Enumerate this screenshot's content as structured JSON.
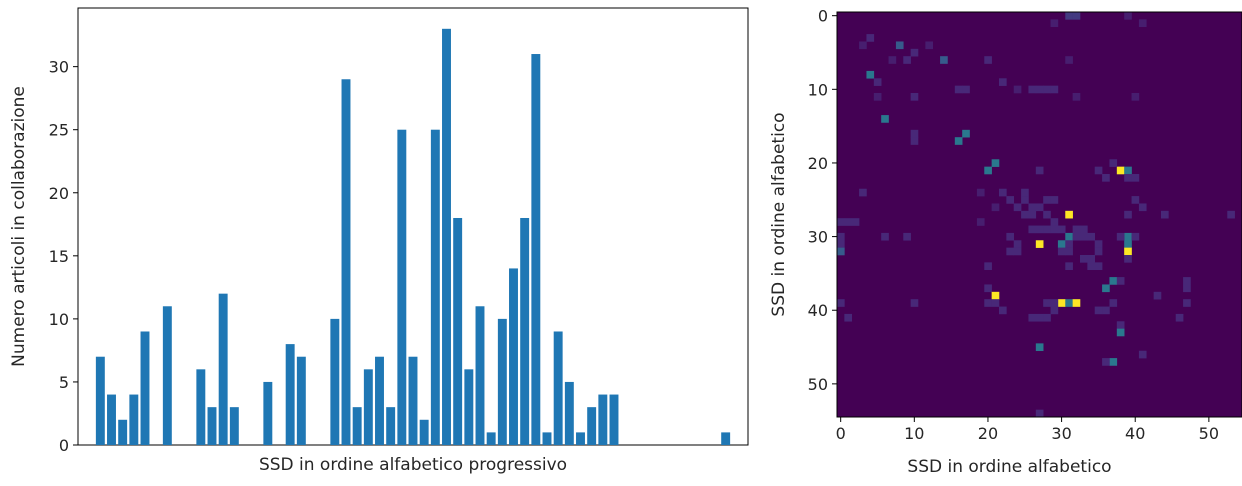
{
  "chart_data": [
    {
      "type": "bar",
      "title": "",
      "xlabel": "SSD in ordine alfabetico progressivo",
      "ylabel": "Numero articoli in collaborazione",
      "ylim": [
        0,
        34.65
      ],
      "yticks": [
        0,
        5,
        10,
        15,
        20,
        25,
        30
      ],
      "x": [
        0,
        1,
        2,
        3,
        4,
        6,
        9,
        10,
        11,
        12,
        15,
        17,
        18,
        21,
        22,
        23,
        24,
        25,
        26,
        27,
        28,
        29,
        30,
        31,
        32,
        33,
        34,
        35,
        36,
        37,
        38,
        39,
        40,
        41,
        42,
        43,
        44,
        45,
        46,
        56
      ],
      "values": [
        7,
        4,
        2,
        4,
        9,
        11,
        6,
        3,
        12,
        3,
        5,
        8,
        7,
        10,
        29,
        3,
        6,
        7,
        3,
        25,
        7,
        2,
        25,
        33,
        18,
        6,
        11,
        1,
        10,
        14,
        18,
        31,
        1,
        9,
        5,
        1,
        3,
        4,
        4,
        1
      ],
      "xlim": [
        -2.0,
        58.0
      ],
      "xticks_shown": false,
      "color": "#1f77b4"
    },
    {
      "type": "heatmap",
      "xlabel": "SSD in ordine alfabetico",
      "ylabel": "SSD in ordine alfabetico",
      "size": 55,
      "xticks": [
        0,
        10,
        20,
        30,
        40,
        50
      ],
      "yticks": [
        0,
        10,
        20,
        30,
        40,
        50
      ],
      "colormap": "viridis",
      "vmax": 31,
      "cells": [
        [
          31,
          0,
          6
        ],
        [
          32,
          0,
          6
        ],
        [
          29,
          1,
          3
        ],
        [
          39,
          0,
          3
        ],
        [
          41,
          1,
          3
        ],
        [
          4,
          3,
          4
        ],
        [
          3,
          4,
          3
        ],
        [
          8,
          4,
          10
        ],
        [
          10,
          5,
          4
        ],
        [
          12,
          4,
          3
        ],
        [
          9,
          6,
          4
        ],
        [
          14,
          6,
          10
        ],
        [
          20,
          6,
          4
        ],
        [
          31,
          6,
          3
        ],
        [
          7,
          6,
          3
        ],
        [
          4,
          8,
          14
        ],
        [
          5,
          9,
          4
        ],
        [
          22,
          9,
          4
        ],
        [
          24,
          10,
          3
        ],
        [
          16,
          10,
          4
        ],
        [
          17,
          10,
          4
        ],
        [
          26,
          10,
          4
        ],
        [
          27,
          10,
          4
        ],
        [
          28,
          10,
          4
        ],
        [
          29,
          10,
          4
        ],
        [
          5,
          11,
          3
        ],
        [
          10,
          11,
          4
        ],
        [
          32,
          11,
          3
        ],
        [
          40,
          11,
          3
        ],
        [
          6,
          14,
          14
        ],
        [
          10,
          16,
          4
        ],
        [
          17,
          16,
          14
        ],
        [
          16,
          17,
          14
        ],
        [
          10,
          17,
          4
        ],
        [
          21,
          20,
          14
        ],
        [
          20,
          21,
          14
        ],
        [
          38,
          21,
          31
        ],
        [
          39,
          21,
          14
        ],
        [
          37,
          20,
          4
        ],
        [
          39,
          22,
          4
        ],
        [
          40,
          22,
          4
        ],
        [
          36,
          22,
          4
        ],
        [
          35,
          21,
          4
        ],
        [
          27,
          21,
          4
        ],
        [
          3,
          24,
          4
        ],
        [
          19,
          24,
          3
        ],
        [
          25,
          24,
          4
        ],
        [
          21,
          26,
          3
        ],
        [
          23,
          25,
          4
        ],
        [
          25,
          25,
          4
        ],
        [
          24,
          26,
          4
        ],
        [
          26,
          26,
          4
        ],
        [
          27,
          26,
          4
        ],
        [
          22,
          24,
          4
        ],
        [
          28,
          25,
          4
        ],
        [
          29,
          25,
          4
        ],
        [
          0,
          28,
          4
        ],
        [
          1,
          28,
          4
        ],
        [
          2,
          28,
          4
        ],
        [
          19,
          28,
          3
        ],
        [
          31,
          27,
          31
        ],
        [
          25,
          27,
          4
        ],
        [
          26,
          27,
          4
        ],
        [
          28,
          27,
          4
        ],
        [
          40,
          25,
          4
        ],
        [
          41,
          26,
          4
        ],
        [
          44,
          27,
          4
        ],
        [
          53,
          27,
          4
        ],
        [
          39,
          27,
          4
        ],
        [
          0,
          30,
          4
        ],
        [
          0,
          31,
          4
        ],
        [
          0,
          32,
          10
        ],
        [
          6,
          30,
          4
        ],
        [
          9,
          30,
          4
        ],
        [
          23,
          30,
          4
        ],
        [
          26,
          29,
          4
        ],
        [
          27,
          29,
          4
        ],
        [
          28,
          29,
          4
        ],
        [
          29,
          29,
          4
        ],
        [
          30,
          29,
          4
        ],
        [
          32,
          29,
          4
        ],
        [
          33,
          29,
          4
        ],
        [
          29,
          28,
          4
        ],
        [
          31,
          30,
          14
        ],
        [
          32,
          30,
          4
        ],
        [
          33,
          30,
          4
        ],
        [
          34,
          30,
          4
        ],
        [
          30,
          31,
          14
        ],
        [
          27,
          31,
          31
        ],
        [
          31,
          31,
          4
        ],
        [
          35,
          31,
          4
        ],
        [
          39,
          30,
          14
        ],
        [
          39,
          31,
          14
        ],
        [
          39,
          32,
          31
        ],
        [
          38,
          30,
          4
        ],
        [
          24,
          31,
          4
        ],
        [
          40,
          30,
          4
        ],
        [
          23,
          32,
          4
        ],
        [
          30,
          32,
          4
        ],
        [
          31,
          32,
          4
        ],
        [
          35,
          32,
          4
        ],
        [
          33,
          33,
          4
        ],
        [
          34,
          33,
          4
        ],
        [
          31,
          34,
          4
        ],
        [
          34,
          34,
          4
        ],
        [
          35,
          34,
          4
        ],
        [
          20,
          34,
          4
        ],
        [
          24,
          32,
          4
        ],
        [
          39,
          33,
          4
        ],
        [
          47,
          36,
          4
        ],
        [
          47,
          37,
          4
        ],
        [
          37,
          36,
          14
        ],
        [
          36,
          37,
          14
        ],
        [
          38,
          36,
          4
        ],
        [
          20,
          37,
          4
        ],
        [
          21,
          38,
          31
        ],
        [
          20,
          39,
          4
        ],
        [
          21,
          39,
          4
        ],
        [
          30,
          39,
          31
        ],
        [
          31,
          39,
          14
        ],
        [
          32,
          39,
          31
        ],
        [
          29,
          39,
          4
        ],
        [
          28,
          39,
          4
        ],
        [
          22,
          40,
          4
        ],
        [
          29,
          40,
          4
        ],
        [
          37,
          39,
          4
        ],
        [
          36,
          40,
          4
        ],
        [
          0,
          39,
          4
        ],
        [
          1,
          41,
          4
        ],
        [
          10,
          39,
          4
        ],
        [
          43,
          38,
          4
        ],
        [
          47,
          39,
          4
        ],
        [
          46,
          41,
          4
        ],
        [
          26,
          41,
          4
        ],
        [
          27,
          41,
          4
        ],
        [
          28,
          41,
          4
        ],
        [
          35,
          40,
          4
        ],
        [
          38,
          42,
          4
        ],
        [
          38,
          43,
          14
        ],
        [
          27,
          45,
          14
        ],
        [
          41,
          46,
          4
        ],
        [
          37,
          47,
          14
        ],
        [
          36,
          47,
          4
        ],
        [
          27,
          54,
          4
        ]
      ]
    }
  ]
}
